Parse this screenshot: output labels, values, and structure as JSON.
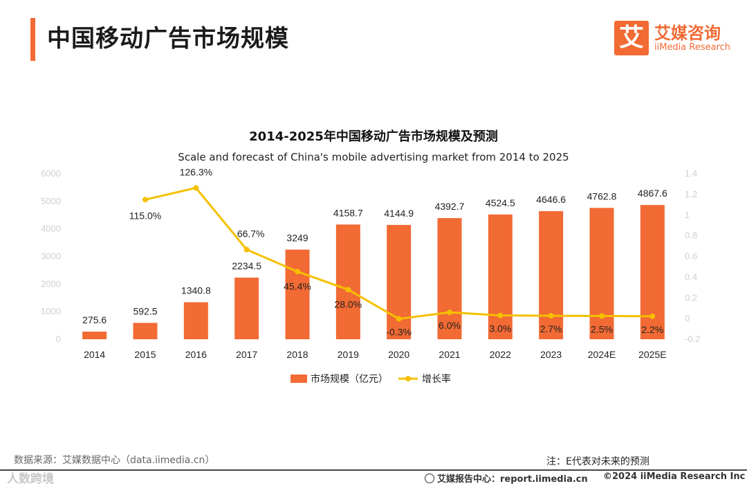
{
  "header": {
    "title": "中国移动广告市场规模"
  },
  "logo": {
    "mark": "艾",
    "name_cn": "艾媒咨询",
    "name_en": "iiMedia Research"
  },
  "chart_data": {
    "type": "bar",
    "title": "2014-2025年中国移动广告市场规模及预测",
    "subtitle": "Scale and forecast of China's mobile advertising market from 2014 to 2025",
    "categories": [
      "2014",
      "2015",
      "2016",
      "2017",
      "2018",
      "2019",
      "2020",
      "2021",
      "2022",
      "2023",
      "2024E",
      "2025E"
    ],
    "series": [
      {
        "name": "市场规模（亿元）",
        "type": "bar",
        "axis": "left",
        "color": "#f26a34",
        "values": [
          275.6,
          592.5,
          1340.8,
          2234.5,
          3249,
          4158.7,
          4144.9,
          4392.7,
          4524.5,
          4646.6,
          4762.8,
          4867.6
        ],
        "labels": [
          "275.6",
          "592.5",
          "1340.8",
          "2234.5",
          "3249",
          "4158.7",
          "4144.9",
          "4392.7",
          "4524.5",
          "4646.6",
          "4762.8",
          "4867.6"
        ]
      },
      {
        "name": "增长率",
        "type": "line",
        "axis": "right",
        "color": "#f5c000",
        "values": [
          null,
          1.15,
          1.263,
          0.667,
          0.454,
          0.28,
          -0.003,
          0.06,
          0.03,
          0.027,
          0.025,
          0.022
        ],
        "labels": [
          "",
          "115.0%",
          "126.3%",
          "66.7%",
          "45.4%",
          "28.0%",
          "-0.3%",
          "6.0%",
          "3.0%",
          "2.7%",
          "2.5%",
          "2.2%"
        ]
      }
    ],
    "y_left": {
      "ylim": [
        0,
        6000
      ],
      "ticks": [
        "0",
        "1000",
        "2000",
        "3000",
        "4000",
        "5000",
        "6000"
      ]
    },
    "y_right": {
      "ylim": [
        -0.2,
        1.4
      ],
      "ticks": [
        "-0.2",
        "0",
        "0.2",
        "0.4",
        "0.6",
        "0.8",
        "1",
        "1.2",
        "1.4"
      ]
    },
    "legend": {
      "placement": "bottom-center"
    },
    "grid": false
  },
  "footer": {
    "source": "数据来源：艾媒数据中心（data.iimedia.cn）",
    "note": "注：E代表对未来的预测",
    "watermark": "人数跨境",
    "report": "艾媒报告中心：report.iimedia.cn",
    "copyright": "©2024  iiMedia Research  Inc"
  }
}
